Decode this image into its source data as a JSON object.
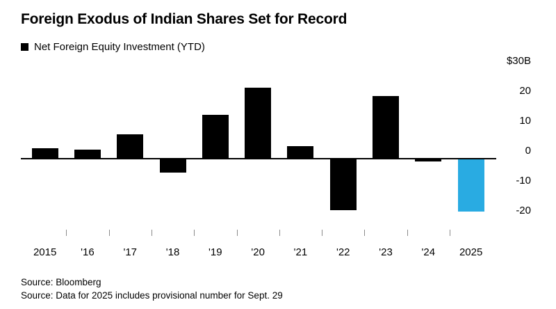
{
  "chart_data": {
    "type": "bar",
    "title": "Foreign Exodus of Indian Shares Set for Record",
    "legend_label": "Net Foreign Equity Investment (YTD)",
    "unit": "USD billions",
    "categories": [
      "2015",
      "'16",
      "'17",
      "'18",
      "'19",
      "'20",
      "'21",
      "'22",
      "'23",
      "'24",
      "2025"
    ],
    "values": [
      3.2,
      2.9,
      8.0,
      -4.4,
      14.4,
      23.4,
      4.0,
      -17.0,
      20.7,
      -0.8,
      -17.5
    ],
    "ylim": [
      -24,
      31
    ],
    "y_ticks": [
      {
        "label": "$30B",
        "value": 30
      },
      {
        "label": "20",
        "value": 20
      },
      {
        "label": "10",
        "value": 10
      },
      {
        "label": "0",
        "value": 0
      },
      {
        "label": "-10",
        "value": -10
      },
      {
        "label": "-20",
        "value": -20
      }
    ],
    "grid": "off",
    "legend_position": "top-left",
    "bar_color": "#000000",
    "highlight_index": 10,
    "highlight_color": "#29abe2"
  },
  "sources": [
    "Source: Bloomberg",
    "Source: Data for 2025 includes provisional number for Sept. 29"
  ]
}
